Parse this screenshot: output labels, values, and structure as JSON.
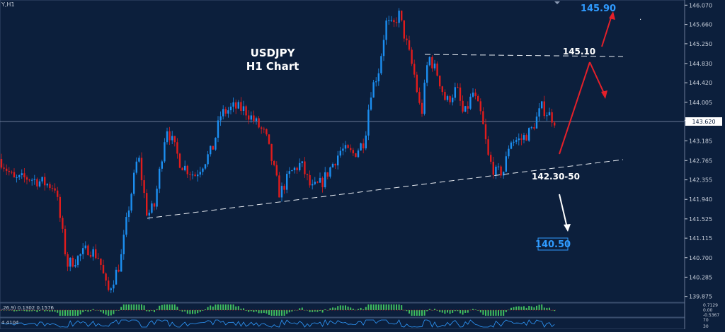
{
  "chart_data": {
    "type": "candlestick",
    "symbol_label": "Y,H1",
    "title_line1": "USDJPY",
    "title_line2": "H1 Chart",
    "y_ticks": [
      "146.070",
      "145.660",
      "145.250",
      "144.830",
      "144.420",
      "144.005",
      "143.620",
      "143.185",
      "142.765",
      "142.355",
      "141.940",
      "141.525",
      "141.115",
      "140.700",
      "140.285",
      "139.875"
    ],
    "current_price": "143.620",
    "ylim": [
      139.78,
      146.15
    ],
    "colors": {
      "background": "#0c1f3c",
      "up": "#1c8ef0",
      "down": "#e01c1c",
      "grid_text": "#c8cfdb",
      "target": "#2f9bff"
    },
    "series": {
      "start_price": 142.8,
      "anchors": [
        [
          0,
          142.8
        ],
        [
          20,
          142.35
        ],
        [
          40,
          142.4
        ],
        [
          60,
          142.3
        ],
        [
          78,
          142.2
        ],
        [
          95,
          140.55
        ],
        [
          110,
          140.7
        ],
        [
          125,
          140.9
        ],
        [
          140,
          140.7
        ],
        [
          152,
          139.95
        ],
        [
          170,
          140.6
        ],
        [
          180,
          141.6
        ],
        [
          195,
          142.9
        ],
        [
          208,
          141.6
        ],
        [
          218,
          141.8
        ],
        [
          235,
          143.5
        ],
        [
          255,
          142.7
        ],
        [
          275,
          142.45
        ],
        [
          300,
          143.0
        ],
        [
          312,
          143.75
        ],
        [
          330,
          143.9
        ],
        [
          345,
          143.85
        ],
        [
          360,
          143.6
        ],
        [
          375,
          143.3
        ],
        [
          385,
          142.7
        ],
        [
          395,
          142.05
        ],
        [
          410,
          142.5
        ],
        [
          425,
          142.7
        ],
        [
          440,
          142.15
        ],
        [
          455,
          142.3
        ],
        [
          470,
          142.7
        ],
        [
          482,
          143.0
        ],
        [
          500,
          142.9
        ],
        [
          515,
          143.2
        ],
        [
          523,
          144.2
        ],
        [
          535,
          144.7
        ],
        [
          545,
          145.7
        ],
        [
          555,
          145.6
        ],
        [
          563,
          145.9
        ],
        [
          575,
          145.2
        ],
        [
          585,
          144.6
        ],
        [
          595,
          143.7
        ],
        [
          605,
          145.0
        ],
        [
          618,
          144.6
        ],
        [
          630,
          144.0
        ],
        [
          645,
          144.3
        ],
        [
          655,
          143.7
        ],
        [
          668,
          144.2
        ],
        [
          680,
          143.7
        ],
        [
          690,
          142.8
        ],
        [
          700,
          142.5
        ],
        [
          712,
          142.55
        ],
        [
          720,
          143.2
        ],
        [
          735,
          143.2
        ],
        [
          750,
          143.4
        ],
        [
          765,
          143.9
        ],
        [
          775,
          143.75
        ],
        [
          785,
          143.6
        ]
      ]
    },
    "annotations": {
      "support_label": "142.30-50",
      "resistance_label": "145.10",
      "target_up": "145.90",
      "target_down": "140.50"
    },
    "macd_label": ",26,9) 0.1302 0.1576",
    "macd_ticks": [
      "0.7129",
      "0.00",
      "-0.5367"
    ],
    "rsi_label": "4.4104",
    "rsi_ticks": [
      "70",
      "30"
    ]
  }
}
